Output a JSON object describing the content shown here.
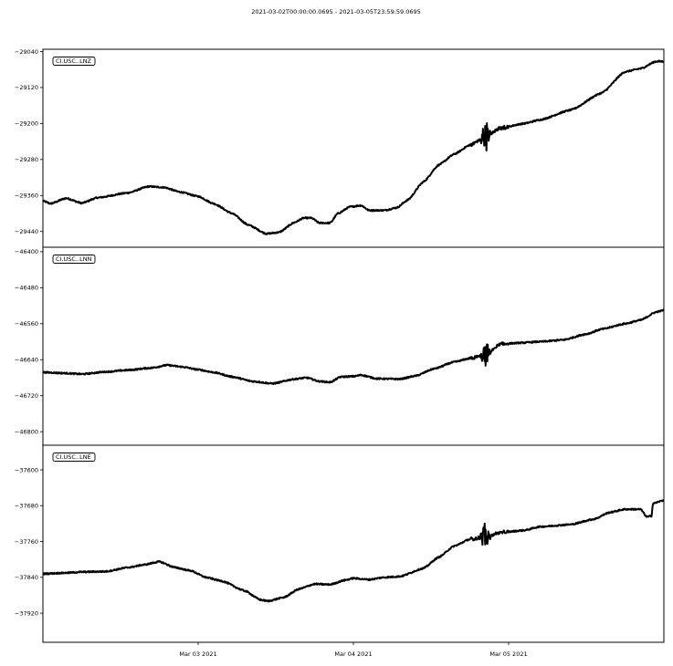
{
  "figure": {
    "title": "2021-03-02T00:00:00.0695  -  2021-03-05T23:59:59.0695"
  },
  "chart_data": {
    "type": "line",
    "title": "2021-03-02T00:00:00.0695  -  2021-03-05T23:59:59.0695",
    "x_range_days": [
      0,
      4
    ],
    "x_ticks": [
      {
        "label": "Mar 03 2021",
        "day": 1
      },
      {
        "label": "Mar 04 2021",
        "day": 2
      },
      {
        "label": "Mar 05 2021",
        "day": 3
      }
    ],
    "line_color": "#000000",
    "grid": false,
    "legend_placement": "top-left",
    "panels": [
      {
        "name": "CI.USC..LNZ",
        "ylim": [
          -29475,
          -29035
        ],
        "y_ticks": [
          -29040,
          -29120,
          -29200,
          -29280,
          -29360,
          -29440
        ],
        "event_day": 2.85,
        "event_spike": 40,
        "points": [
          [
            0.0,
            -29372
          ],
          [
            0.05,
            -29378
          ],
          [
            0.15,
            -29366
          ],
          [
            0.25,
            -29377
          ],
          [
            0.35,
            -29365
          ],
          [
            0.55,
            -29354
          ],
          [
            0.68,
            -29340
          ],
          [
            0.78,
            -29342
          ],
          [
            0.88,
            -29352
          ],
          [
            1.0,
            -29362
          ],
          [
            1.1,
            -29378
          ],
          [
            1.22,
            -29400
          ],
          [
            1.32,
            -29425
          ],
          [
            1.44,
            -29445
          ],
          [
            1.52,
            -29442
          ],
          [
            1.62,
            -29420
          ],
          [
            1.68,
            -29410
          ],
          [
            1.73,
            -29410
          ],
          [
            1.78,
            -29421
          ],
          [
            1.85,
            -29421
          ],
          [
            1.9,
            -29400
          ],
          [
            1.98,
            -29385
          ],
          [
            2.05,
            -29382
          ],
          [
            2.1,
            -29393
          ],
          [
            2.2,
            -29393
          ],
          [
            2.28,
            -29387
          ],
          [
            2.35,
            -29370
          ],
          [
            2.45,
            -29330
          ],
          [
            2.55,
            -29292
          ],
          [
            2.65,
            -29268
          ],
          [
            2.75,
            -29248
          ],
          [
            2.85,
            -29230
          ],
          [
            2.95,
            -29210
          ],
          [
            3.1,
            -29200
          ],
          [
            3.2,
            -29192
          ],
          [
            3.4,
            -29170
          ],
          [
            3.6,
            -29132
          ],
          [
            3.75,
            -29085
          ],
          [
            3.85,
            -29078
          ],
          [
            3.95,
            -29062
          ],
          [
            4.0,
            -29062
          ]
        ]
      },
      {
        "name": "CI.USC..LNN",
        "ylim": [
          -46830,
          -46390
        ],
        "y_ticks": [
          -46400,
          -46480,
          -46560,
          -46640,
          -46720,
          -46800
        ],
        "event_day": 2.85,
        "event_spike": 30,
        "points": [
          [
            0.0,
            -46668
          ],
          [
            0.15,
            -46670
          ],
          [
            0.25,
            -46672
          ],
          [
            0.4,
            -46667
          ],
          [
            0.55,
            -46663
          ],
          [
            0.7,
            -46658
          ],
          [
            0.8,
            -46652
          ],
          [
            0.9,
            -46656
          ],
          [
            1.0,
            -46662
          ],
          [
            1.1,
            -46668
          ],
          [
            1.22,
            -46678
          ],
          [
            1.35,
            -46688
          ],
          [
            1.48,
            -46693
          ],
          [
            1.62,
            -46683
          ],
          [
            1.7,
            -46680
          ],
          [
            1.78,
            -46688
          ],
          [
            1.85,
            -46690
          ],
          [
            1.92,
            -46678
          ],
          [
            2.0,
            -46677
          ],
          [
            2.05,
            -46674
          ],
          [
            2.15,
            -46682
          ],
          [
            2.3,
            -46683
          ],
          [
            2.4,
            -46676
          ],
          [
            2.52,
            -46660
          ],
          [
            2.65,
            -46645
          ],
          [
            2.75,
            -46637
          ],
          [
            2.85,
            -46630
          ],
          [
            2.95,
            -46605
          ],
          [
            3.05,
            -46603
          ],
          [
            3.2,
            -46600
          ],
          [
            3.35,
            -46596
          ],
          [
            3.5,
            -46583
          ],
          [
            3.6,
            -46572
          ],
          [
            3.75,
            -46560
          ],
          [
            3.85,
            -46552
          ],
          [
            3.95,
            -46534
          ],
          [
            4.0,
            -46530
          ]
        ]
      },
      {
        "name": "CI.USC..LNE",
        "ylim": [
          -37985,
          -37545
        ],
        "y_ticks": [
          -37600,
          -37680,
          -37760,
          -37840,
          -37920
        ],
        "event_day": 2.85,
        "event_spike": 35,
        "points": [
          [
            0.0,
            -37832
          ],
          [
            0.15,
            -37830
          ],
          [
            0.25,
            -37828
          ],
          [
            0.4,
            -37827
          ],
          [
            0.55,
            -37818
          ],
          [
            0.65,
            -37812
          ],
          [
            0.75,
            -37805
          ],
          [
            0.85,
            -37818
          ],
          [
            0.95,
            -37825
          ],
          [
            1.05,
            -37840
          ],
          [
            1.15,
            -37848
          ],
          [
            1.3,
            -37870
          ],
          [
            1.4,
            -37890
          ],
          [
            1.45,
            -37893
          ],
          [
            1.55,
            -37885
          ],
          [
            1.65,
            -37866
          ],
          [
            1.75,
            -37855
          ],
          [
            1.85,
            -37856
          ],
          [
            1.95,
            -37846
          ],
          [
            2.0,
            -37842
          ],
          [
            2.1,
            -37845
          ],
          [
            2.2,
            -37840
          ],
          [
            2.3,
            -37838
          ],
          [
            2.45,
            -37820
          ],
          [
            2.55,
            -37795
          ],
          [
            2.65,
            -37770
          ],
          [
            2.75,
            -37755
          ],
          [
            2.85,
            -37750
          ],
          [
            2.95,
            -37740
          ],
          [
            3.1,
            -37735
          ],
          [
            3.2,
            -37727
          ],
          [
            3.4,
            -37722
          ],
          [
            3.55,
            -37710
          ],
          [
            3.65,
            -37695
          ],
          [
            3.75,
            -37688
          ],
          [
            3.85,
            -37688
          ],
          [
            3.89,
            -37705
          ],
          [
            3.92,
            -37703
          ],
          [
            3.93,
            -37675
          ],
          [
            4.0,
            -37668
          ]
        ]
      }
    ]
  }
}
